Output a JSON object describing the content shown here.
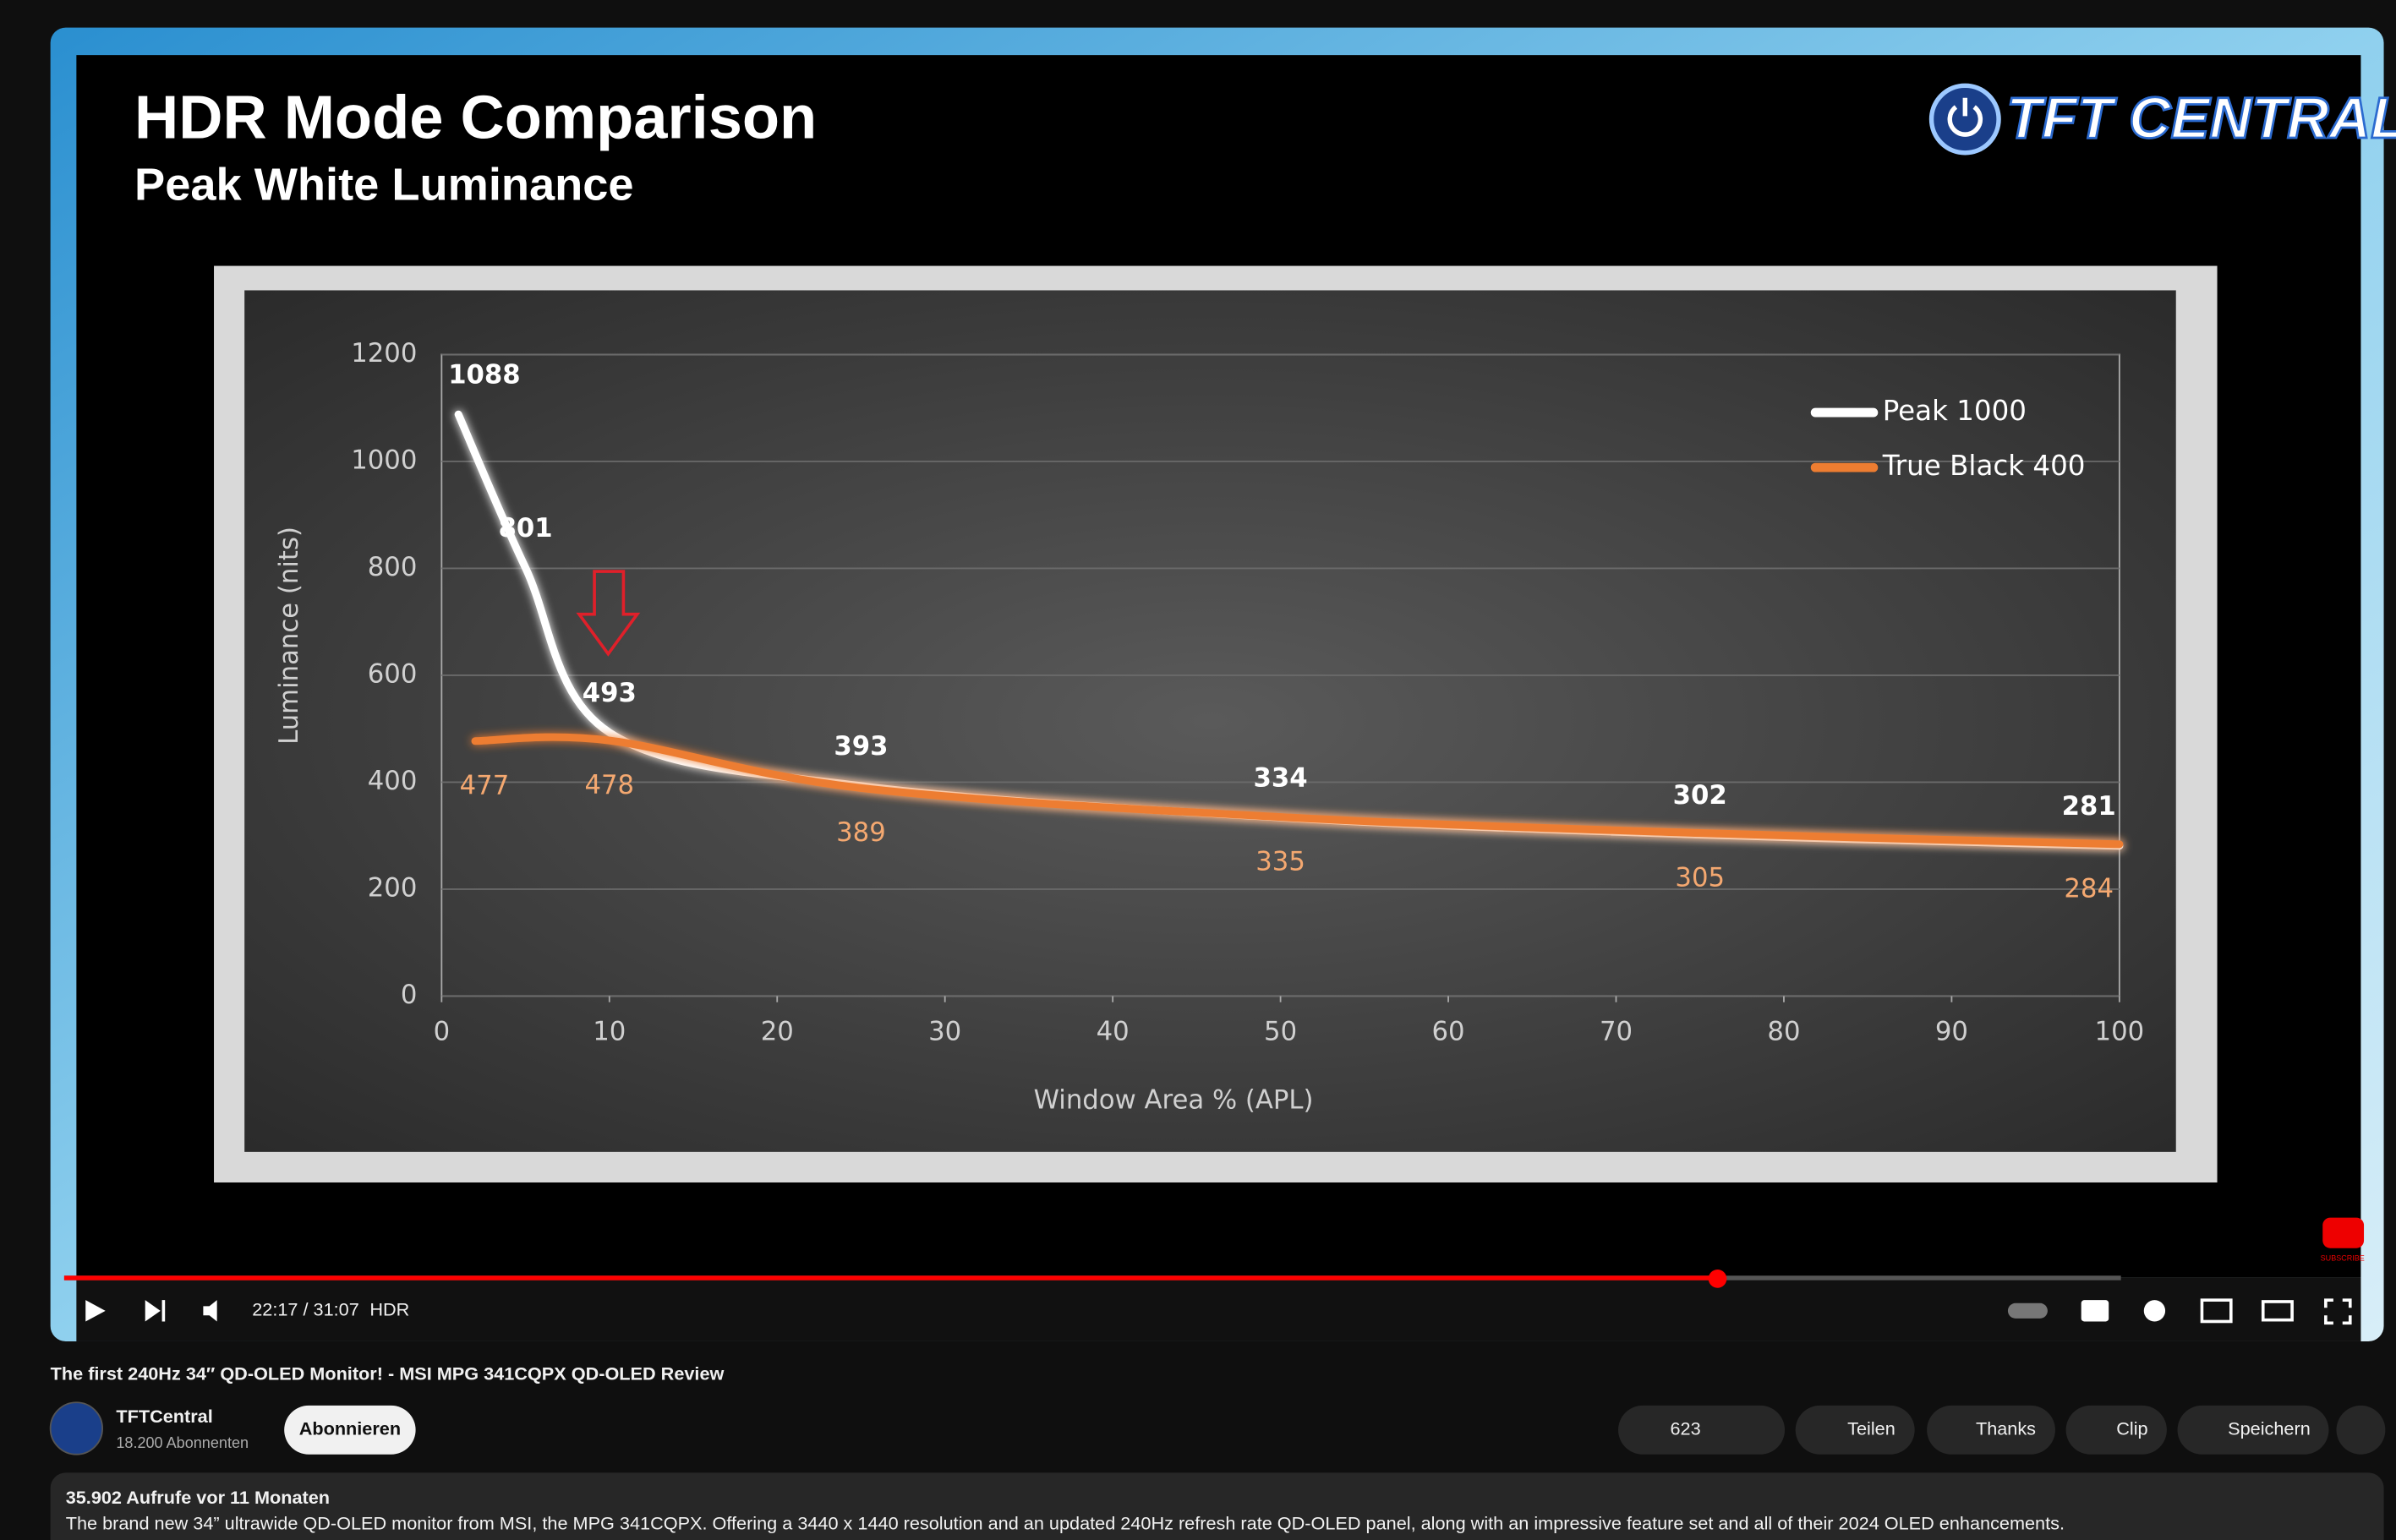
{
  "video": {
    "logo": "TFT CENTRAL",
    "end_screen": "SUBSCRIBE",
    "time": "22:17 / 31:07",
    "quality": "HDR",
    "title": "The first 240Hz 34″ QD-OLED Monitor! - MSI MPG 341CQPX QD-OLED Review",
    "channel": "TFTCentral",
    "subscribers": "18.200 Abonnenten",
    "subscribe": "Abonnieren",
    "likes": "623",
    "share": "Teilen",
    "thanks": "Thanks",
    "clip": "Clip",
    "save": "Speichern",
    "views": "35.902 Aufrufe  vor 11 Monaten",
    "description": "The brand new 34” ultrawide QD-OLED monitor from MSI, the MPG 341CQPX. Offering a 3440 x 1440 resolution and an updated 240Hz refresh rate QD-OLED panel, along with an impressive feature set and all of their 2024 OLED enhancements."
  },
  "chart_data": {
    "type": "line",
    "title": "HDR Mode Comparison",
    "subtitle": "Peak White Luminance",
    "x_label": "Window Area % (APL)",
    "y_label": "Luminance (nits)",
    "xlim": [
      0,
      100
    ],
    "ylim": [
      0,
      1200
    ],
    "xticks": [
      0,
      10,
      20,
      30,
      40,
      50,
      60,
      70,
      80,
      90,
      100
    ],
    "yticks": [
      0,
      200,
      400,
      600,
      800,
      1000,
      1200
    ],
    "grid": true,
    "legend": "upper right",
    "series": [
      {
        "name": "Peak 1000",
        "color": "#ffffff",
        "x": [
          1,
          5,
          10,
          25,
          50,
          75,
          100
        ],
        "values": [
          1088,
          801,
          493,
          393,
          334,
          302,
          281
        ]
      },
      {
        "name": "True Black 400",
        "color": "#ed7d31",
        "x": [
          2,
          10,
          25,
          50,
          75,
          100
        ],
        "values": [
          477,
          478,
          389,
          335,
          305,
          284
        ]
      }
    ]
  }
}
